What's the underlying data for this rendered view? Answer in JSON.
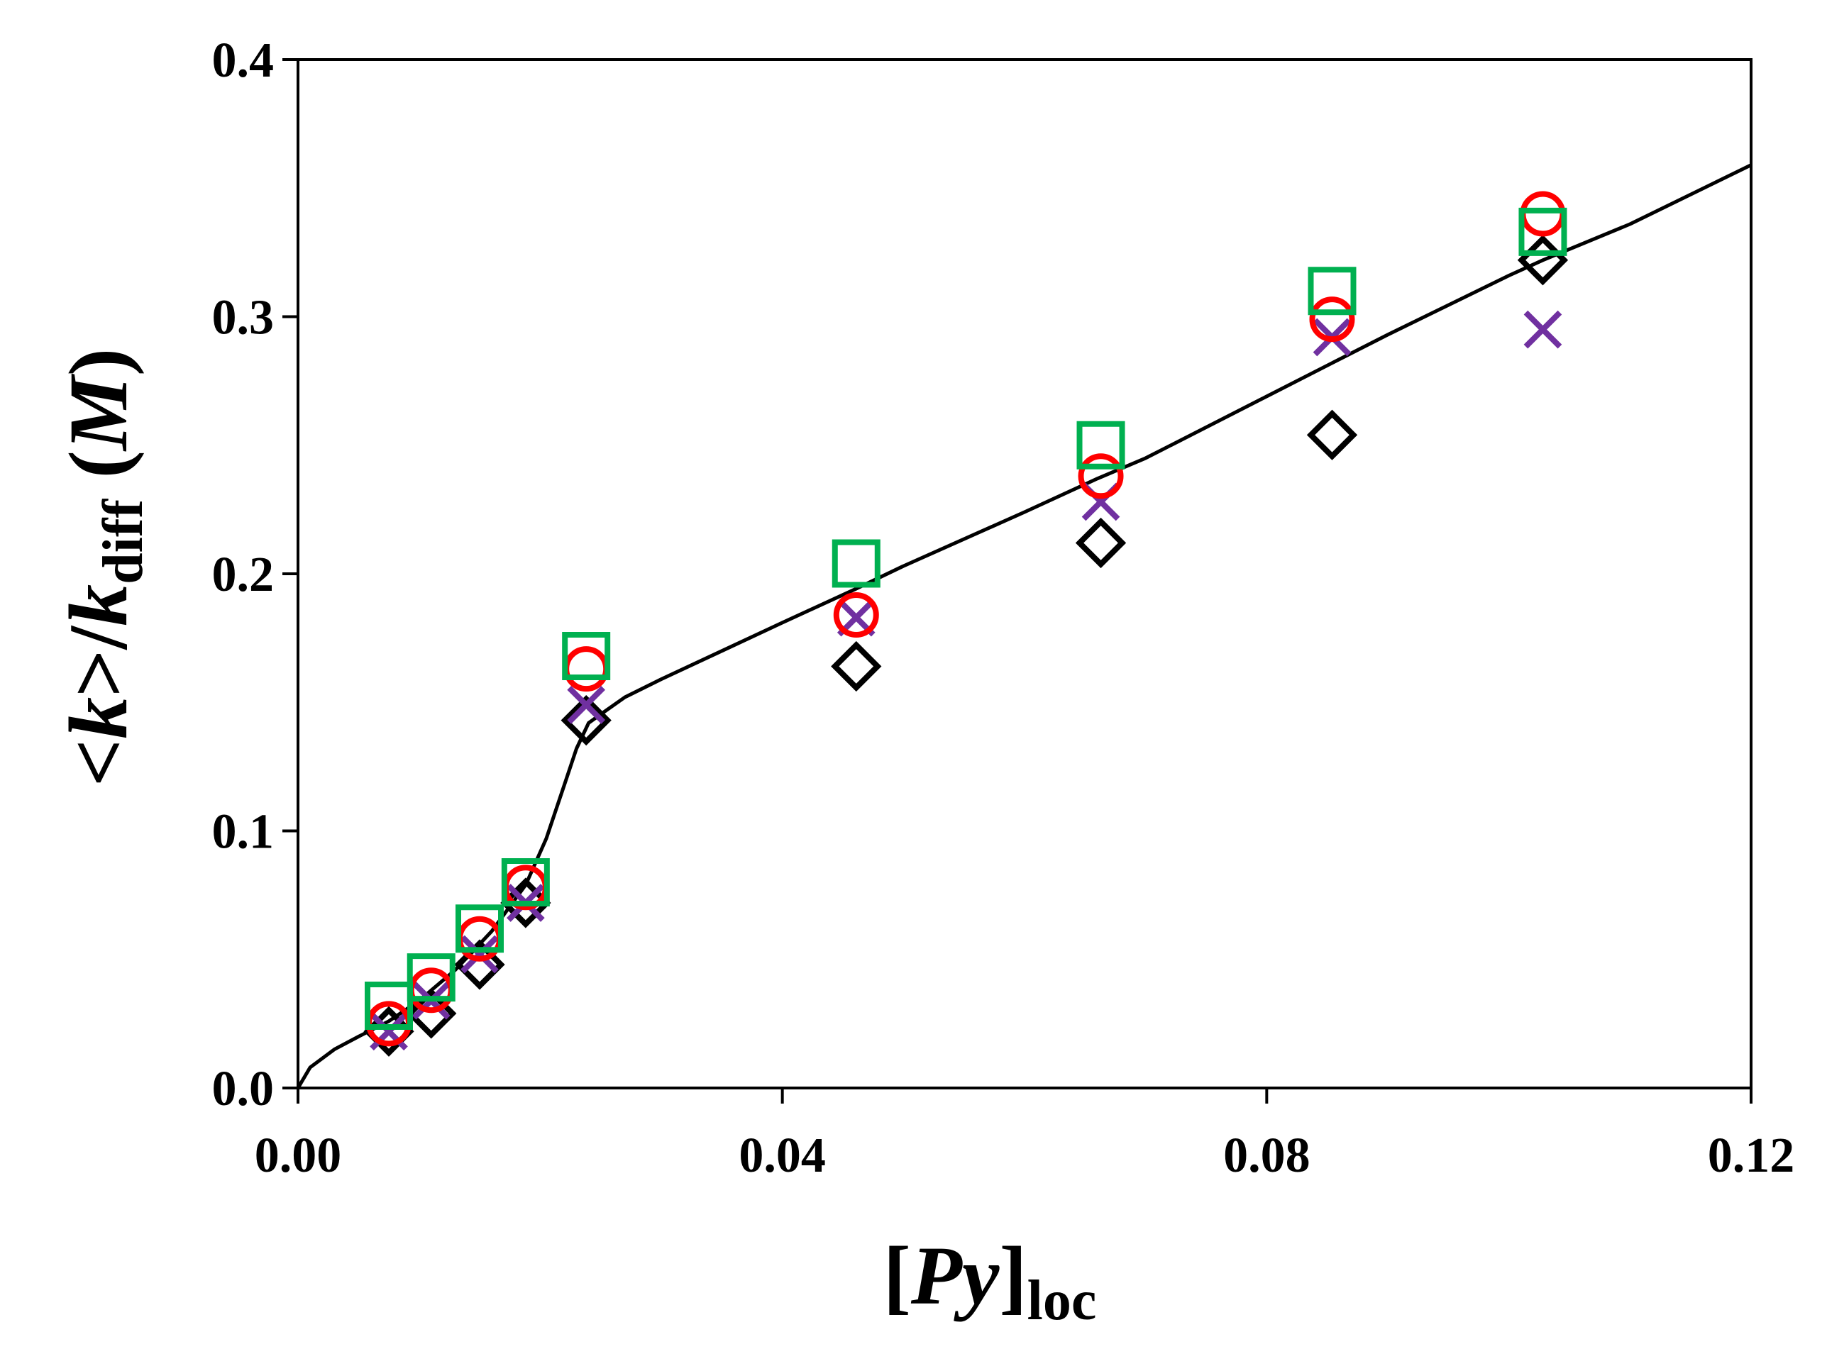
{
  "chart_data": {
    "type": "scatter",
    "title": "",
    "xlabel": {
      "prefix": "[",
      "italic": "Py",
      "suffix": "]",
      "subscript": "loc"
    },
    "ylabel": {
      "lt": "<",
      "italic_k": "k",
      "gt_slash": ">/",
      "italic_k2": "k",
      "subscript": "diff",
      "unit_open": " (",
      "unit": "M",
      "unit_close": ")"
    },
    "xlim": [
      0,
      0.12
    ],
    "ylim": [
      0,
      0.4
    ],
    "x_ticks": [
      0,
      0.04,
      0.08,
      0.12
    ],
    "x_tick_labels": [
      "0.00",
      "0.04",
      "0.08",
      "0.12"
    ],
    "y_ticks": [
      0,
      0.1,
      0.2,
      0.3,
      0.4
    ],
    "y_tick_labels": [
      "0.0",
      "0.1",
      "0.2",
      "0.3",
      "0.4"
    ],
    "grid": false,
    "legend": "none",
    "series": [
      {
        "name": "diamonds",
        "marker": "diamond",
        "color": "#000000",
        "x": [
          0.0075,
          0.011,
          0.015,
          0.0188,
          0.0238,
          0.0461,
          0.0663,
          0.0854,
          0.1028
        ],
        "y": [
          0.022,
          0.029,
          0.048,
          0.072,
          0.143,
          0.164,
          0.212,
          0.254,
          0.322
        ]
      },
      {
        "name": "crosses",
        "marker": "x",
        "color": "#7030a0",
        "x": [
          0.0075,
          0.011,
          0.015,
          0.0188,
          0.0238,
          0.0461,
          0.0663,
          0.0854,
          0.1028
        ],
        "y": [
          0.022,
          0.034,
          0.052,
          0.072,
          0.149,
          0.183,
          0.228,
          0.292,
          0.295
        ]
      },
      {
        "name": "circles",
        "marker": "circle",
        "color": "#ff0000",
        "x": [
          0.0075,
          0.011,
          0.015,
          0.0188,
          0.0238,
          0.0461,
          0.0663,
          0.0854,
          0.1028
        ],
        "y": [
          0.025,
          0.038,
          0.058,
          0.078,
          0.163,
          0.184,
          0.238,
          0.299,
          0.34
        ]
      },
      {
        "name": "squares",
        "marker": "square",
        "color": "#00b050",
        "x": [
          0.0075,
          0.011,
          0.015,
          0.0188,
          0.0238,
          0.0461,
          0.0663,
          0.0854,
          0.1028
        ],
        "y": [
          0.032,
          0.043,
          0.062,
          0.08,
          0.168,
          0.204,
          0.25,
          0.31,
          0.333
        ]
      },
      {
        "name": "fit",
        "type": "line",
        "color": "#000000",
        "x": [
          0,
          0.001,
          0.003,
          0.005,
          0.0075,
          0.01,
          0.013,
          0.016,
          0.0188,
          0.0205,
          0.022,
          0.023,
          0.024,
          0.0255,
          0.027,
          0.03,
          0.035,
          0.04,
          0.046,
          0.05,
          0.06,
          0.066,
          0.07,
          0.08,
          0.0854,
          0.09,
          0.1,
          0.1028,
          0.11,
          0.12
        ],
        "y": [
          0,
          0.008,
          0.015,
          0.02,
          0.026,
          0.034,
          0.046,
          0.061,
          0.079,
          0.097,
          0.118,
          0.132,
          0.142,
          0.147,
          0.152,
          0.159,
          0.17,
          0.181,
          0.194,
          0.203,
          0.224,
          0.237,
          0.245,
          0.269,
          0.282,
          0.293,
          0.316,
          0.322,
          0.336,
          0.359
        ]
      }
    ]
  }
}
